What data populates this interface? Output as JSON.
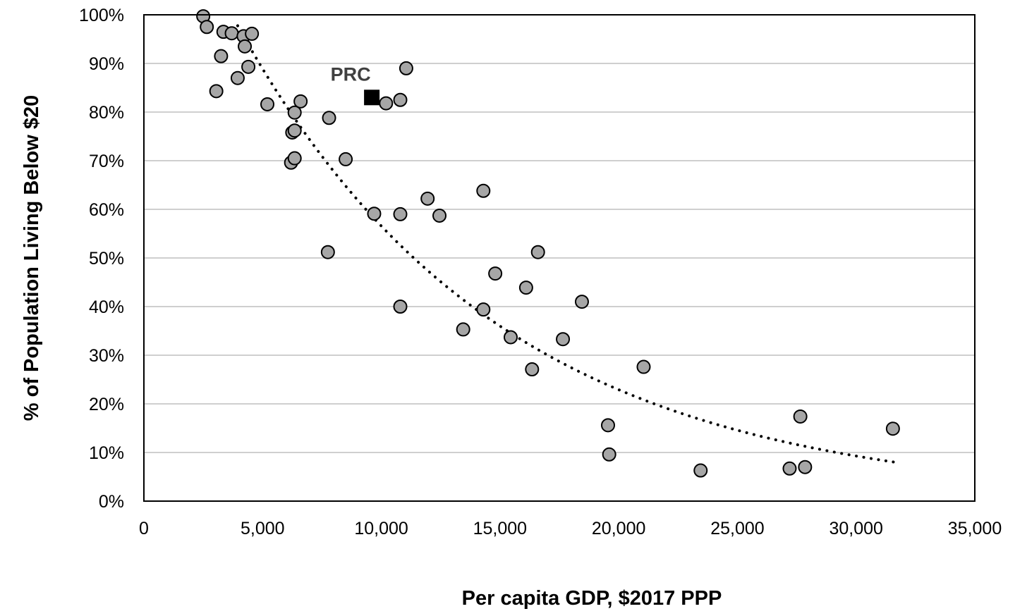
{
  "chart_data": {
    "type": "scatter",
    "title": "",
    "xlabel": "Per capita GDP, $2017 PPP",
    "ylabel": "% of Population Living Below $20",
    "xlim": [
      0,
      35000
    ],
    "ylim": [
      0,
      100
    ],
    "x_ticks": [
      0,
      5000,
      10000,
      15000,
      20000,
      25000,
      30000,
      35000
    ],
    "x_tick_labels": [
      "0",
      "5,000",
      "10,000",
      "15,000",
      "20,000",
      "25,000",
      "30,000",
      "35,000"
    ],
    "y_ticks": [
      0,
      10,
      20,
      30,
      40,
      50,
      60,
      70,
      80,
      90,
      100
    ],
    "y_tick_labels": [
      "0%",
      "10%",
      "20%",
      "30%",
      "40%",
      "50%",
      "60%",
      "70%",
      "80%",
      "90%",
      "100%"
    ],
    "grid": "horizontal",
    "legend": "none",
    "colors": {
      "point_fill": "#a6a6a6",
      "point_stroke": "#000000",
      "highlight": "#000000",
      "gridline": "#bfbfbf",
      "trendline": "#000000",
      "annotation": "#404040"
    },
    "series": [
      {
        "points": [
          [
            2500,
            99.7
          ],
          [
            2650,
            97.5
          ],
          [
            3350,
            96.5
          ],
          [
            3700,
            96.2
          ],
          [
            4200,
            95.6
          ],
          [
            4550,
            96.1
          ],
          [
            4250,
            93.5
          ],
          [
            3250,
            91.5
          ],
          [
            4400,
            89.3
          ],
          [
            3050,
            84.3
          ],
          [
            3950,
            87.0
          ],
          [
            5200,
            81.6
          ],
          [
            6600,
            82.2
          ],
          [
            6350,
            79.9
          ],
          [
            6250,
            75.8
          ],
          [
            6350,
            76.2
          ],
          [
            6200,
            69.6
          ],
          [
            6350,
            70.5
          ],
          [
            7800,
            78.8
          ],
          [
            8500,
            70.3
          ],
          [
            7750,
            51.2
          ],
          [
            9700,
            59.1
          ],
          [
            10200,
            81.8
          ],
          [
            10800,
            82.5
          ],
          [
            11050,
            89.0
          ],
          [
            10800,
            59.0
          ],
          [
            10800,
            40.0
          ],
          [
            11950,
            62.2
          ],
          [
            12450,
            58.7
          ],
          [
            13450,
            35.3
          ],
          [
            14300,
            63.8
          ],
          [
            14300,
            39.4
          ],
          [
            14800,
            46.8
          ],
          [
            15450,
            33.7
          ],
          [
            16100,
            43.9
          ],
          [
            16350,
            27.1
          ],
          [
            16600,
            51.2
          ],
          [
            17650,
            33.3
          ],
          [
            18450,
            41.0
          ],
          [
            19550,
            15.6
          ],
          [
            19600,
            9.6
          ],
          [
            21050,
            27.6
          ],
          [
            23450,
            6.3
          ],
          [
            27200,
            6.7
          ],
          [
            27650,
            17.4
          ],
          [
            27850,
            7.0
          ],
          [
            31550,
            14.9
          ]
        ]
      }
    ],
    "highlight_point": {
      "label": "PRC",
      "x": 9600,
      "y": 83.0
    },
    "trendline": {
      "style": "dotted",
      "form": "exponential",
      "a": 139.7,
      "b": -9.04e-05,
      "x_start": 3950,
      "x_end": 31600
    }
  }
}
